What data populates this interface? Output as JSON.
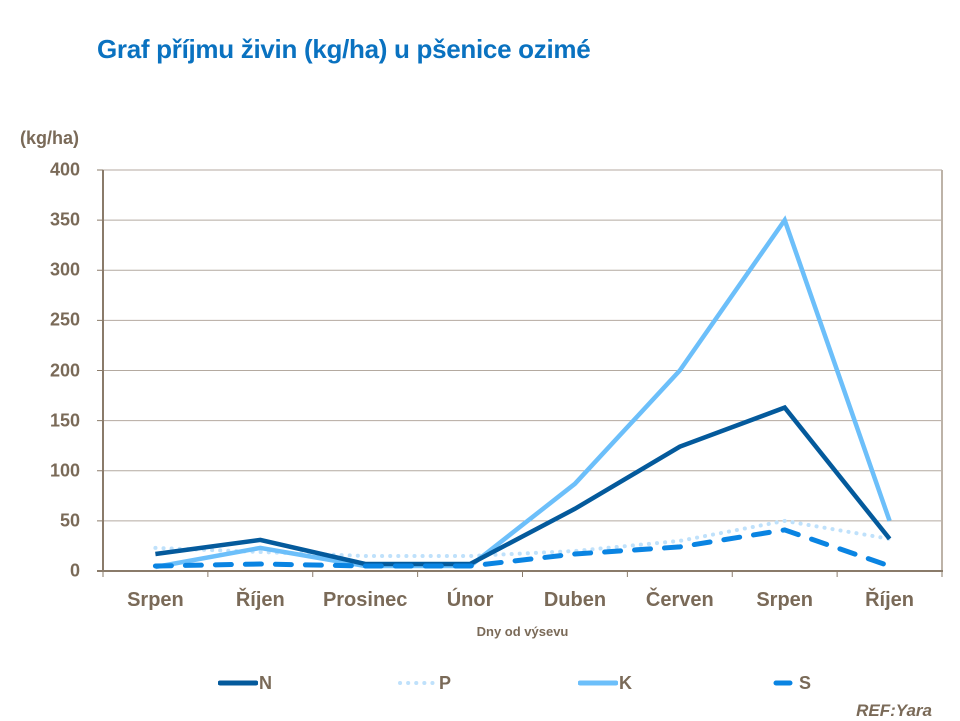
{
  "title": "Graf příjmu živin (kg/ha) u pšenice ozimé",
  "y_unit": "(kg/ha)",
  "x_axis_title": "Dny od výsevu",
  "reference": "REF:Yara",
  "colors": {
    "N": "#045a9c",
    "P": "#bfe1fb",
    "K": "#6cbffa",
    "S": "#0a84e2",
    "axis": "#8a7b6a",
    "grid": "#b4aaa0",
    "text": "#7a6a58",
    "title": "#0a72c0"
  },
  "y_ticks": [
    "400",
    "350",
    "300",
    "250",
    "200",
    "150",
    "100",
    "50",
    "0"
  ],
  "x_ticks": [
    "Srpen",
    "Říjen",
    "Prosinec",
    "Únor",
    "Duben",
    "Červen",
    "Srpen",
    "Říjen"
  ],
  "legend": [
    {
      "key": "N",
      "label": "N",
      "style": "solid"
    },
    {
      "key": "P",
      "label": "P",
      "style": "dotted"
    },
    {
      "key": "K",
      "label": "K",
      "style": "solid"
    },
    {
      "key": "S",
      "label": "S",
      "style": "dashed"
    }
  ],
  "chart_data": {
    "type": "line",
    "title": "Graf příjmu živin (kg/ha) u pšenice ozimé",
    "xlabel": "Dny od výsevu",
    "ylabel": "(kg/ha)",
    "ylim": [
      0,
      400
    ],
    "yticks": [
      0,
      50,
      100,
      150,
      200,
      250,
      300,
      350,
      400
    ],
    "grid": true,
    "legend_position": "bottom",
    "categories": [
      "Srpen",
      "Říjen",
      "Prosinec",
      "Únor",
      "Duben",
      "Červen",
      "Srpen",
      "Říjen"
    ],
    "series": [
      {
        "name": "N",
        "style": "solid",
        "values": [
          17,
          31,
          7,
          7,
          62,
          124,
          163,
          32
        ]
      },
      {
        "name": "P",
        "style": "dotted",
        "values": [
          23,
          19,
          15,
          15,
          20,
          30,
          50,
          32
        ]
      },
      {
        "name": "K",
        "style": "solid",
        "values": [
          4,
          23,
          5,
          5,
          87,
          200,
          350,
          50
        ]
      },
      {
        "name": "S",
        "style": "dashed",
        "values": [
          5,
          7,
          5,
          5,
          17,
          24,
          41,
          5
        ]
      }
    ]
  }
}
